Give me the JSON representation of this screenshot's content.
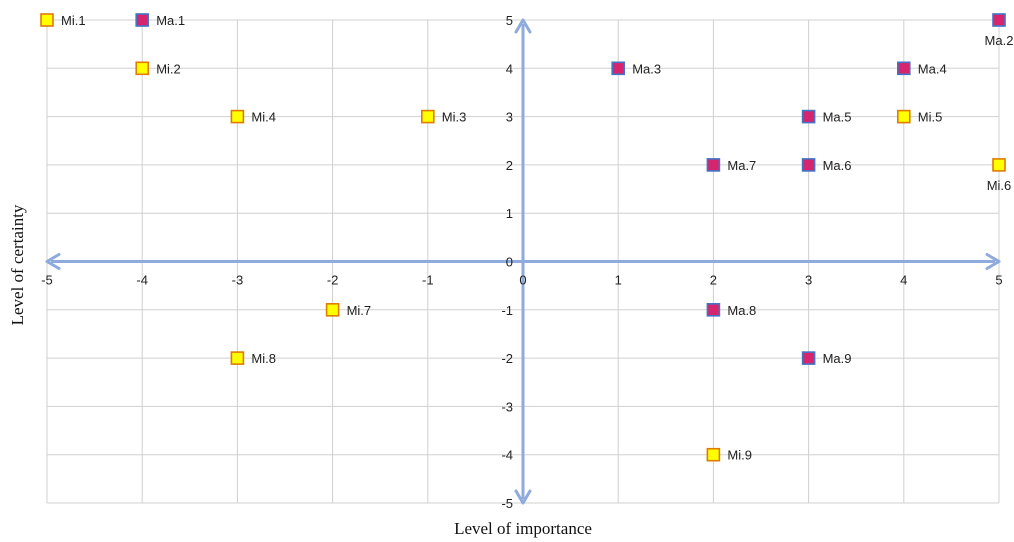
{
  "chart_data": {
    "type": "scatter",
    "title": "",
    "xlabel": "Level of importance",
    "ylabel": "Level of certainty",
    "xlim": [
      -5,
      5
    ],
    "ylim": [
      -5,
      5
    ],
    "grid": true,
    "x_ticks": [
      -5,
      -4,
      -3,
      -2,
      -1,
      0,
      1,
      2,
      3,
      4,
      5
    ],
    "y_ticks": [
      -5,
      -4,
      -3,
      -2,
      -1,
      0,
      1,
      2,
      3,
      4,
      5
    ],
    "series": [
      {
        "marker_fill": "#ffff00",
        "marker_stroke": "#e07b00",
        "points": [
          {
            "label": "Mi.1",
            "x": -5,
            "y": 5,
            "label_pos": "right"
          },
          {
            "label": "Mi.2",
            "x": -4,
            "y": 4,
            "label_pos": "right"
          },
          {
            "label": "Mi.3",
            "x": -1,
            "y": 3,
            "label_pos": "right"
          },
          {
            "label": "Mi.4",
            "x": -3,
            "y": 3,
            "label_pos": "right"
          },
          {
            "label": "Mi.5",
            "x": 4,
            "y": 3,
            "label_pos": "right"
          },
          {
            "label": "Mi.6",
            "x": 5,
            "y": 2,
            "label_pos": "below"
          },
          {
            "label": "Mi.7",
            "x": -2,
            "y": -1,
            "label_pos": "right"
          },
          {
            "label": "Mi.8",
            "x": -3,
            "y": -2,
            "label_pos": "right"
          },
          {
            "label": "Mi.9",
            "x": 2,
            "y": -4,
            "label_pos": "right"
          }
        ]
      },
      {
        "marker_fill": "#d6246e",
        "marker_stroke": "#4472c4",
        "points": [
          {
            "label": "Ma.1",
            "x": -4,
            "y": 5,
            "label_pos": "right"
          },
          {
            "label": "Ma.2",
            "x": 5,
            "y": 5,
            "label_pos": "below"
          },
          {
            "label": "Ma.3",
            "x": 1,
            "y": 4,
            "label_pos": "right"
          },
          {
            "label": "Ma.4",
            "x": 4,
            "y": 4,
            "label_pos": "right"
          },
          {
            "label": "Ma.5",
            "x": 3,
            "y": 3,
            "label_pos": "right"
          },
          {
            "label": "Ma.6",
            "x": 3,
            "y": 2,
            "label_pos": "right"
          },
          {
            "label": "Ma.7",
            "x": 2,
            "y": 2,
            "label_pos": "right"
          },
          {
            "label": "Ma.8",
            "x": 2,
            "y": -1,
            "label_pos": "right"
          },
          {
            "label": "Ma.9",
            "x": 3,
            "y": -2,
            "label_pos": "right"
          }
        ]
      }
    ],
    "colors": {
      "grid": "#d0d0d0",
      "axis": "#8faadc"
    }
  }
}
